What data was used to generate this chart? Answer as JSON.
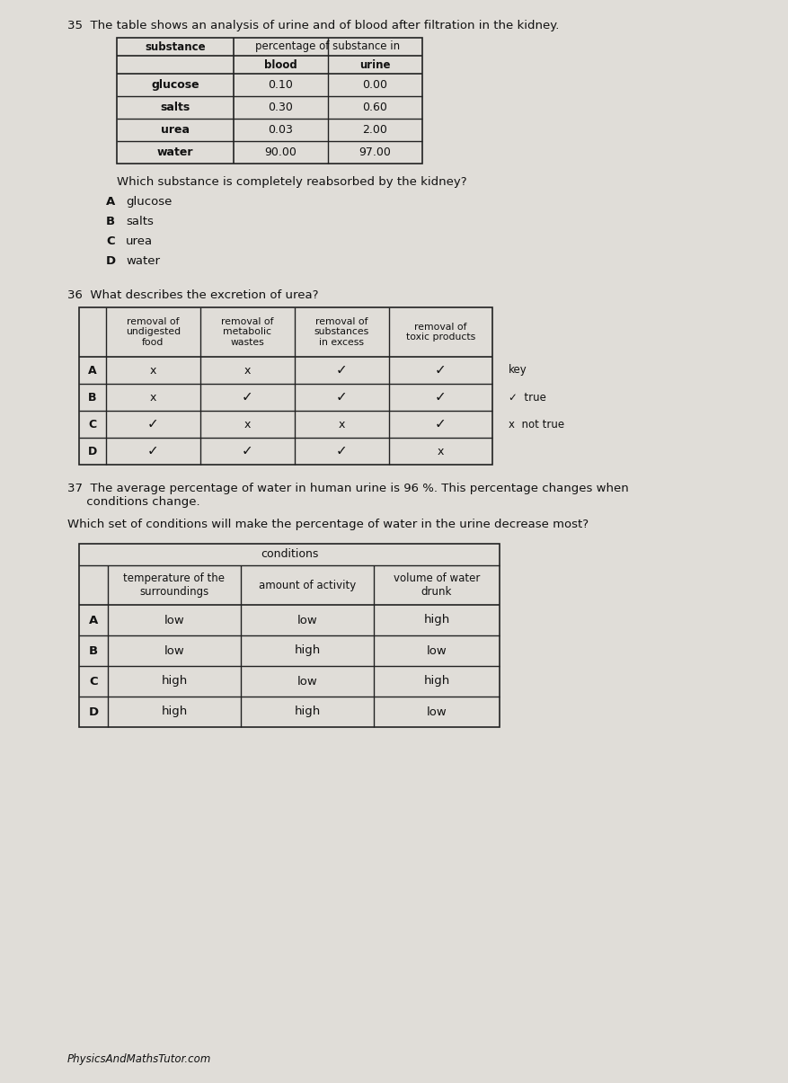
{
  "bg_color": "#e0ddd8",
  "q35_text": "35  The table shows an analysis of urine and of blood after filtration in the kidney.",
  "q35_table": {
    "rows": [
      [
        "glucose",
        "0.10",
        "0.00"
      ],
      [
        "salts",
        "0.30",
        "0.60"
      ],
      [
        "urea",
        "0.03",
        "2.00"
      ],
      [
        "water",
        "90.00",
        "97.00"
      ]
    ]
  },
  "q35_question": "Which substance is completely reabsorbed by the kidney?",
  "q35_options": [
    [
      "A",
      "glucose"
    ],
    [
      "B",
      "salts"
    ],
    [
      "C",
      "urea"
    ],
    [
      "D",
      "water"
    ]
  ],
  "q36_text": "36  What describes the excretion of urea?",
  "q36_table": {
    "col_headers": [
      "",
      "removal of\nundigested\nfood",
      "removal of\nmetabolic\nwastes",
      "removal of\nsubstances\nin excess",
      "removal of\ntoxic products"
    ],
    "rows": [
      [
        "A",
        "x",
        "x",
        "✓",
        "✓"
      ],
      [
        "B",
        "x",
        "✓",
        "✓",
        "✓"
      ],
      [
        "C",
        "✓",
        "x",
        "x",
        "✓"
      ],
      [
        "D",
        "✓",
        "✓",
        "✓",
        "x"
      ]
    ],
    "key_labels": [
      "key",
      "✓  true",
      "x  not true"
    ]
  },
  "q37_text1": "37  The average percentage of water in human urine is 96 %. This percentage changes when\n     conditions change.",
  "q37_text2": "Which set of conditions will make the percentage of water in the urine decrease most?",
  "q37_table": {
    "top_header": "conditions",
    "col_headers": [
      "",
      "temperature of the\nsurroundings",
      "amount of activity",
      "volume of water\ndrunk"
    ],
    "rows": [
      [
        "A",
        "low",
        "low",
        "high"
      ],
      [
        "B",
        "low",
        "high",
        "low"
      ],
      [
        "C",
        "high",
        "low",
        "high"
      ],
      [
        "D",
        "high",
        "high",
        "low"
      ]
    ]
  },
  "footer": "PhysicsAndMathsTutor.com"
}
